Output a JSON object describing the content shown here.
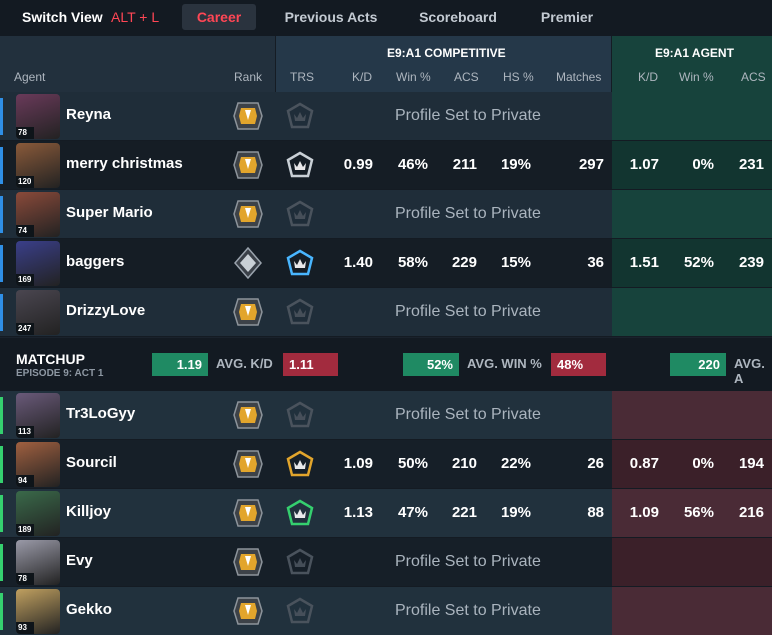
{
  "topbar": {
    "switch_view": "Switch View",
    "hotkey": "ALT + L",
    "tabs": [
      {
        "label": "Career",
        "active": true
      },
      {
        "label": "Previous Acts",
        "active": false
      },
      {
        "label": "Scoreboard",
        "active": false
      },
      {
        "label": "Premier",
        "active": false
      }
    ]
  },
  "header": {
    "agent": "Agent",
    "rank": "Rank",
    "competitive_group": "E9:A1 COMPETITIVE",
    "agent_group": "E9:A1 AGENT",
    "cols": {
      "trs": "TRS",
      "kd": "K/D",
      "win": "Win %",
      "acs": "ACS",
      "hs": "HS %",
      "matches": "Matches",
      "a_kd": "K/D",
      "a_win": "Win %",
      "a_acs": "ACS"
    }
  },
  "private_text": "Profile Set to Private",
  "team_blue": [
    {
      "name": "Reyna",
      "level": "78",
      "private": true
    },
    {
      "name": "merry christmas",
      "level": "120",
      "private": false,
      "kd": "0.99",
      "win": "46%",
      "acs": "211",
      "hs": "19%",
      "matches": "297",
      "a_kd": "1.07",
      "a_win": "0%",
      "a_acs": "231"
    },
    {
      "name": "Super Mario",
      "level": "74",
      "private": true
    },
    {
      "name": "baggers",
      "level": "169",
      "private": false,
      "kd": "1.40",
      "win": "58%",
      "acs": "229",
      "hs": "15%",
      "matches": "36",
      "a_kd": "1.51",
      "a_win": "52%",
      "a_acs": "239"
    },
    {
      "name": "DrizzyLove",
      "level": "247",
      "private": true
    }
  ],
  "matchup": {
    "title": "MATCHUP",
    "subtitle": "EPISODE 9: ACT 1",
    "kd_ours": "1.19",
    "kd_label": "AVG. K/D",
    "kd_theirs": "1.11",
    "win_ours": "52%",
    "win_label": "AVG. WIN %",
    "win_theirs": "48%",
    "acs_ours": "220",
    "acs_label": "AVG. A"
  },
  "team_red": [
    {
      "name": "Tr3LoGyy",
      "level": "113",
      "private": true
    },
    {
      "name": "Sourcil",
      "level": "94",
      "private": false,
      "kd": "1.09",
      "win": "50%",
      "acs": "210",
      "hs": "22%",
      "matches": "26",
      "a_kd": "0.87",
      "a_win": "0%",
      "a_acs": "194"
    },
    {
      "name": "Killjoy",
      "level": "189",
      "private": false,
      "kd": "1.13",
      "win": "47%",
      "acs": "221",
      "hs": "19%",
      "matches": "88",
      "a_kd": "1.09",
      "a_win": "56%",
      "a_acs": "216"
    },
    {
      "name": "Evy",
      "level": "78",
      "private": true
    },
    {
      "name": "Gekko",
      "level": "93",
      "private": true
    }
  ],
  "colors": {
    "accent_red": "#ff4655",
    "blue_bar": "#2f8fe6",
    "green_bar": "#35d06f",
    "win_green": "#1f8a63",
    "lose_red": "#a22b3e"
  }
}
